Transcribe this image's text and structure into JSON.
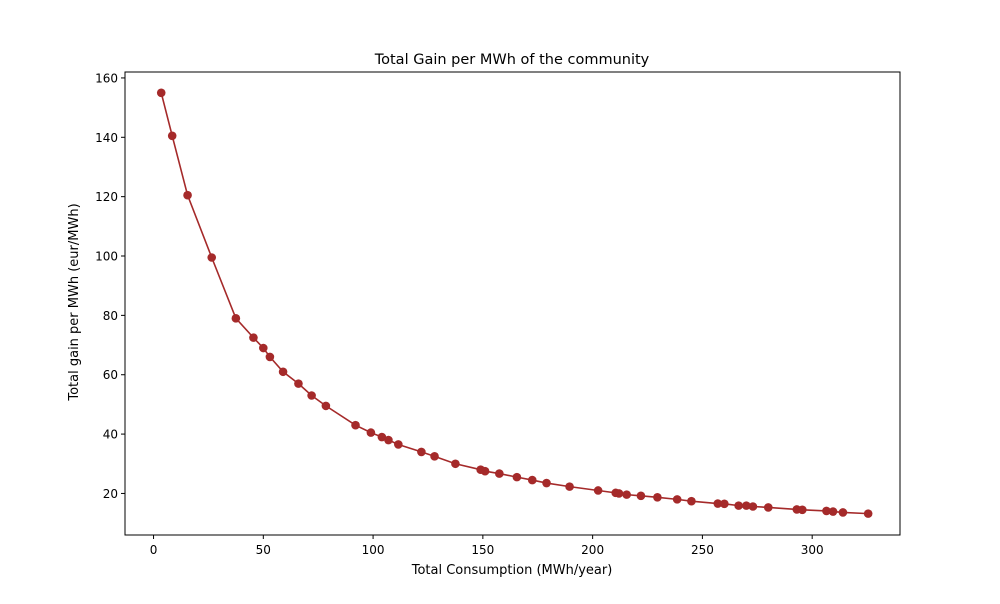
{
  "chart_data": {
    "type": "line",
    "title": "Total Gain per MWh of the community",
    "xlabel": "Total Consumption (MWh/year)",
    "ylabel": "Total gain per MWh (eur/MWh)",
    "xlim": [
      -13,
      340
    ],
    "ylim": [
      6,
      162
    ],
    "xticks": [
      0,
      50,
      100,
      150,
      200,
      250,
      300
    ],
    "yticks": [
      20,
      40,
      60,
      80,
      100,
      120,
      140,
      160
    ],
    "grid": false,
    "color": "#a52a2a",
    "series": [
      {
        "x": [
          3.5,
          8.5,
          15.5,
          26.5,
          37.5,
          45.5,
          50,
          53,
          59,
          66,
          72,
          78.5,
          92,
          99,
          104,
          107,
          111.5,
          122,
          128,
          137.5,
          149,
          151,
          157.5,
          165.5,
          172.5,
          179,
          189.5,
          202.5,
          210.5,
          212,
          215.5,
          222,
          229.5,
          238.5,
          245,
          257,
          260,
          266.5,
          270,
          273,
          280,
          293,
          295.5,
          306.5,
          309.5,
          314,
          325.5
        ],
        "y": [
          155,
          140.5,
          120.5,
          99.5,
          79,
          72.5,
          69,
          66,
          61,
          57,
          53,
          49.5,
          43,
          40.5,
          39,
          38,
          36.5,
          34,
          32.5,
          30,
          28,
          27.5,
          26.7,
          25.5,
          24.5,
          23.5,
          22.3,
          21,
          20.2,
          20,
          19.6,
          19.2,
          18.7,
          18,
          17.4,
          16.6,
          16.5,
          15.9,
          15.9,
          15.6,
          15.3,
          14.6,
          14.5,
          14.1,
          13.9,
          13.6,
          13.2
        ]
      }
    ]
  }
}
